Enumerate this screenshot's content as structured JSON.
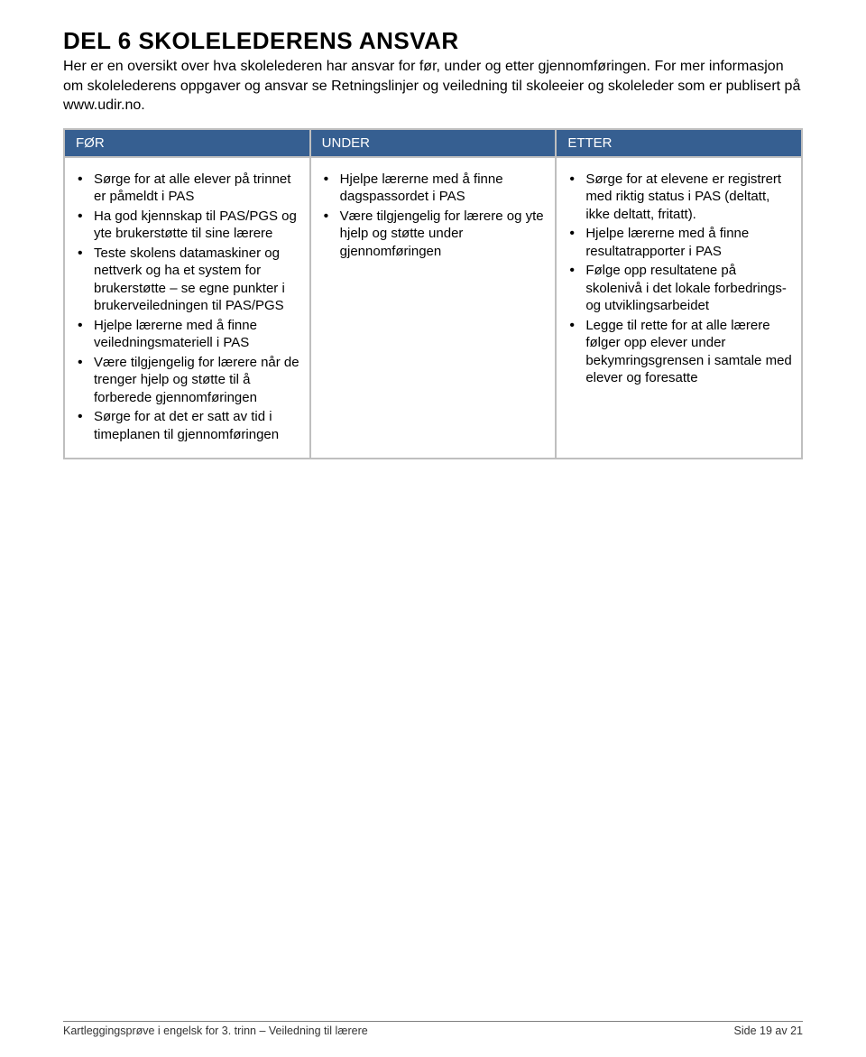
{
  "title": "DEL 6 SKOLELEDERENS ANSVAR",
  "intro": "Her er en oversikt over hva skolelederen har ansvar for før, under og etter gjennomføringen. For mer informasjon om skolelederens oppgaver og ansvar se Retningslinjer og veiledning til skoleeier og skoleleder som er publisert på www.udir.no.",
  "table": {
    "headers": {
      "c1": "FØR",
      "c2": "UNDER",
      "c3": "ETTER"
    },
    "col1": [
      "Sørge for at alle elever på trinnet er påmeldt i PAS",
      "Ha god kjennskap til PAS/PGS og yte brukerstøtte til sine lærere",
      "Teste skolens datamaskiner og nettverk og ha et system for brukerstøtte – se egne punkter i brukerveiledningen til PAS/PGS",
      "Hjelpe lærerne med å finne veiledningsmateriell i PAS",
      "Være tilgjengelig for lærere når de trenger hjelp og støtte til å forberede gjennomføringen",
      "Sørge for at det er satt av tid i timeplanen til gjennomføringen"
    ],
    "col2": [
      "Hjelpe lærerne med å finne dagspassordet i PAS",
      "Være tilgjengelig for lærere og yte hjelp og støtte under gjennomføringen"
    ],
    "col3": [
      "Sørge for at elevene er registrert med riktig status i PAS (deltatt, ikke deltatt, fritatt).",
      "Hjelpe lærerne med å finne resultatrapporter i PAS",
      "Følge opp resultatene på skolenivå i det lokale forbedrings- og utviklingsarbeidet",
      "Legge til rette for at alle lærere følger opp elever under bekymringsgrensen i samtale med elever og foresatte"
    ]
  },
  "footer": {
    "left": "Kartleggingsprøve i engelsk for 3. trinn – Veiledning til lærere",
    "right": "Side 19 av 21"
  },
  "colors": {
    "header_bg": "#365f91",
    "header_fg": "#ffffff",
    "border": "#bfbfbf",
    "text": "#000000"
  }
}
